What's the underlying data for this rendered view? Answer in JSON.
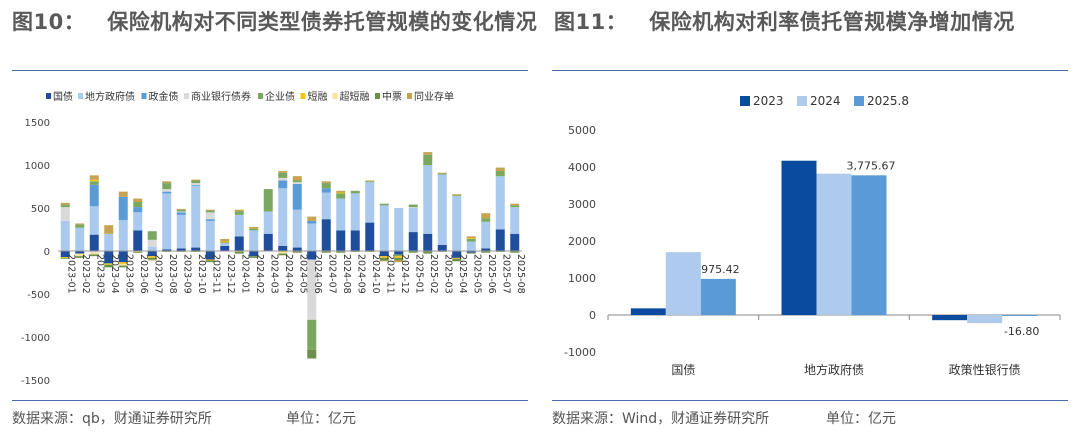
{
  "left": {
    "title_num": "图10：",
    "title_text": "保险机构对不同类型债券托管规模的变化情况",
    "source": "数据来源：qb，财通证券研究所",
    "unit": "单位：亿元"
  },
  "right": {
    "title_num": "图11：",
    "title_text": "保险机构对利率债托管规模净增加情况",
    "source": "数据来源：Wind，财通证券研究所",
    "unit": "单位：亿元"
  },
  "chart_data": [
    {
      "type": "bar",
      "stacked": true,
      "ylim": [
        -1500,
        1500
      ],
      "yticks": [
        -1500,
        -1000,
        -500,
        0,
        500,
        1000,
        1500
      ],
      "legend_position": "top",
      "categories": [
        "2023-01",
        "2023-02",
        "2023-03",
        "2023-04",
        "2023-05",
        "2023-06",
        "2023-07",
        "2023-08",
        "2023-09",
        "2023-10",
        "2023-11",
        "2023-12",
        "2024-01",
        "2024-02",
        "2024-03",
        "2024-04",
        "2024-05",
        "2024-06",
        "2024-07",
        "2024-08",
        "2024-09",
        "2024-10",
        "2024-11",
        "2024-12",
        "2025-01",
        "2025-02",
        "2025-03",
        "2025-04",
        "2025-05",
        "2025-06",
        "2025-07",
        "2025-08"
      ],
      "series": [
        {
          "name": "国债",
          "color": "#1f4e9c",
          "values": [
            -70,
            -30,
            190,
            -140,
            -130,
            240,
            -60,
            20,
            30,
            40,
            -100,
            60,
            170,
            -60,
            200,
            60,
            40,
            -100,
            370,
            240,
            240,
            330,
            -60,
            -40,
            220,
            200,
            70,
            -80,
            -20,
            30,
            250,
            200
          ]
        },
        {
          "name": "地方政府债",
          "color": "#a9c9ee",
          "values": [
            350,
            270,
            330,
            200,
            360,
            210,
            50,
            650,
            390,
            720,
            350,
            30,
            250,
            240,
            260,
            670,
            440,
            320,
            310,
            370,
            430,
            470,
            530,
            500,
            280,
            800,
            820,
            640,
            110,
            310,
            620,
            310
          ]
        },
        {
          "name": "政金债",
          "color": "#5b9bd5",
          "values": [
            0,
            0,
            250,
            0,
            270,
            60,
            0,
            20,
            30,
            10,
            20,
            0,
            0,
            0,
            0,
            90,
            300,
            30,
            50,
            0,
            0,
            0,
            0,
            0,
            0,
            0,
            0,
            0,
            0,
            0,
            0,
            0
          ]
        },
        {
          "name": "商业银行债券",
          "color": "#d9d9d9",
          "values": [
            160,
            0,
            -20,
            0,
            0,
            0,
            80,
            30,
            10,
            20,
            80,
            0,
            0,
            0,
            0,
            30,
            20,
            -700,
            0,
            0,
            0,
            0,
            0,
            0,
            10,
            0,
            0,
            0,
            0,
            0,
            0,
            0
          ]
        },
        {
          "name": "企业债",
          "color": "#7aa860",
          "values": [
            30,
            40,
            40,
            -10,
            0,
            60,
            100,
            70,
            20,
            30,
            20,
            10,
            40,
            20,
            260,
            60,
            20,
            -350,
            60,
            60,
            30,
            10,
            20,
            -20,
            30,
            120,
            10,
            10,
            30,
            40,
            60,
            20
          ]
        },
        {
          "name": "短融",
          "color": "#f0c419",
          "values": [
            -10,
            0,
            20,
            -10,
            -20,
            -10,
            -20,
            0,
            0,
            0,
            -10,
            10,
            -10,
            0,
            0,
            -10,
            0,
            0,
            0,
            10,
            0,
            0,
            -20,
            -20,
            0,
            0,
            0,
            -10,
            10,
            0,
            0,
            0
          ]
        },
        {
          "name": "超短融",
          "color": "#f7e4a1",
          "values": [
            0,
            -30,
            -20,
            0,
            -20,
            0,
            0,
            0,
            0,
            0,
            0,
            0,
            0,
            0,
            0,
            -20,
            0,
            0,
            0,
            0,
            0,
            0,
            0,
            0,
            0,
            0,
            0,
            0,
            0,
            0,
            0,
            0
          ]
        },
        {
          "name": "中票",
          "color": "#6c8f4a",
          "values": [
            -10,
            -20,
            -20,
            -30,
            -20,
            -10,
            -20,
            -10,
            -10,
            -10,
            -20,
            0,
            -20,
            -20,
            0,
            -20,
            -20,
            -100,
            -20,
            -20,
            -10,
            -10,
            -30,
            -30,
            -20,
            -30,
            -10,
            -30,
            -10,
            -20,
            -10,
            -20
          ]
        },
        {
          "name": "同业存单",
          "color": "#c5a351",
          "values": [
            20,
            10,
            50,
            100,
            60,
            40,
            -10,
            20,
            10,
            10,
            10,
            30,
            20,
            20,
            0,
            20,
            50,
            50,
            20,
            20,
            0,
            10,
            -10,
            -20,
            0,
            30,
            10,
            10,
            20,
            60,
            40,
            20
          ]
        }
      ]
    },
    {
      "type": "bar",
      "ylim": [
        -1000,
        5000
      ],
      "yticks": [
        -1000,
        0,
        1000,
        2000,
        3000,
        4000,
        5000
      ],
      "legend_position": "top",
      "categories": [
        "国债",
        "地方政府债",
        "政策性银行债"
      ],
      "series": [
        {
          "name": "2023",
          "color": "#0a4ba0",
          "values": [
            180,
            4170,
            -140
          ]
        },
        {
          "name": "2024",
          "color": "#aecbee",
          "values": [
            1700,
            3820,
            -220
          ]
        },
        {
          "name": "2025.8",
          "color": "#5b9bd5",
          "values": [
            975.42,
            3775.67,
            -16.8
          ]
        }
      ],
      "data_labels": [
        "975.42",
        "3,775.67",
        "-16.80"
      ]
    }
  ]
}
